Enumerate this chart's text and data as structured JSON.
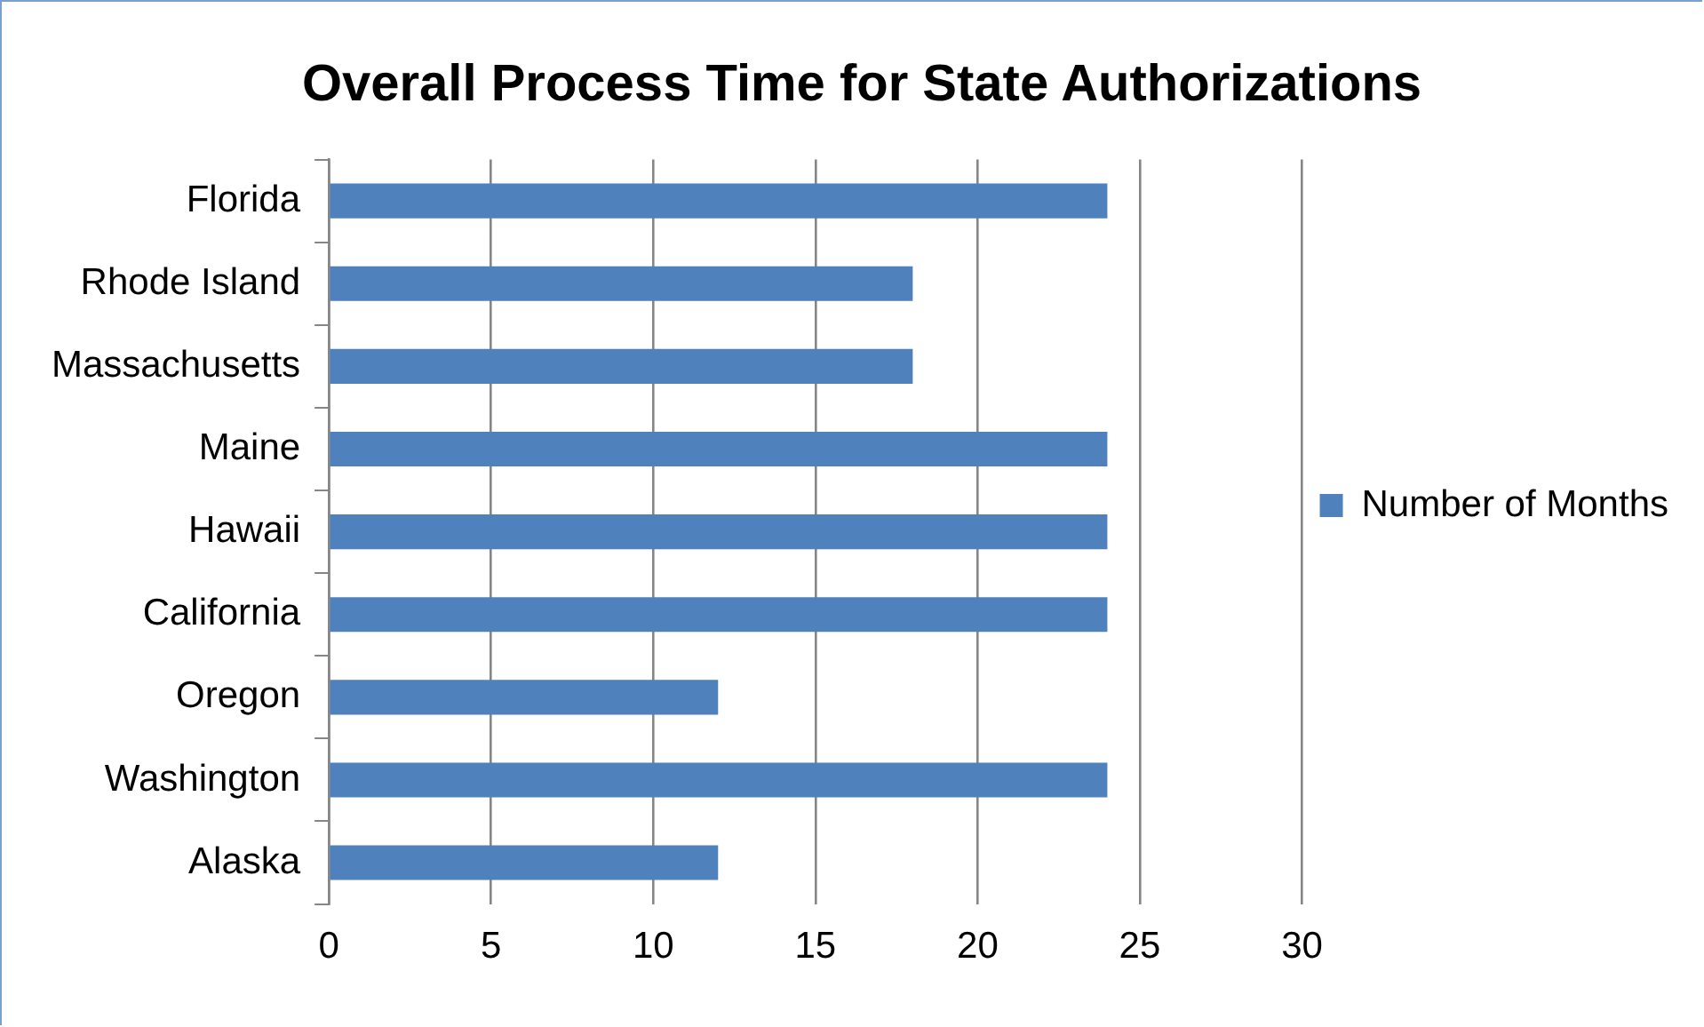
{
  "chart_data": {
    "type": "bar",
    "orientation": "horizontal",
    "title": "Overall Process Time for State Authorizations",
    "categories": [
      "Florida",
      "Rhode Island",
      "Massachusetts",
      "Maine",
      "Hawaii",
      "California",
      "Oregon",
      "Washington",
      "Alaska"
    ],
    "series": [
      {
        "name": "Number of Months",
        "color": "#4f81bd",
        "values": [
          24,
          18,
          18,
          24,
          24,
          24,
          12,
          24,
          12
        ]
      }
    ],
    "xlim": [
      0,
      30
    ],
    "xticks": [
      0,
      5,
      10,
      15,
      20,
      25,
      30
    ],
    "grid": "x",
    "legend": "right"
  }
}
